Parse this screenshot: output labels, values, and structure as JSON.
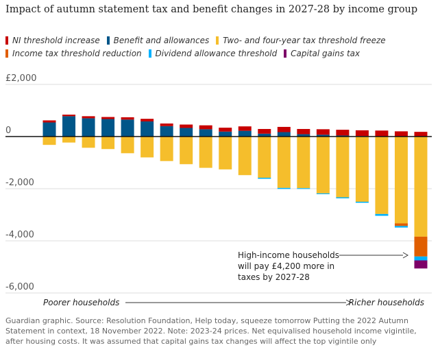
{
  "chart_data": {
    "type": "bar",
    "title": "Impact of autumn statement tax and benefit changes in 2027-28 by income group",
    "ylim": [
      -6000,
      2000
    ],
    "yticks": [
      {
        "value": 2000,
        "label": "£2,000"
      },
      {
        "value": 0,
        "label": "0"
      },
      {
        "value": -2000,
        "label": "-2,000"
      },
      {
        "value": -4000,
        "label": "-4,000"
      },
      {
        "value": -6000,
        "label": "-6,000"
      }
    ],
    "grid": true,
    "legend_position": "top",
    "series": [
      {
        "name": "NI threshold increase",
        "color": "#c70000"
      },
      {
        "name": "Benefit and allowances",
        "color": "#005689"
      },
      {
        "name": "Two- and four-year tax threshold freeze",
        "color": "#f5be2c"
      },
      {
        "name": "Income tax threshold reduction",
        "color": "#e05e00"
      },
      {
        "name": "Dividend allowance threshold",
        "color": "#00b2ff"
      },
      {
        "name": "Capital gains tax",
        "color": "#7d0068"
      }
    ],
    "bars": [
      {
        "ni": 80,
        "benefit": 540,
        "freeze": -320,
        "income": 0,
        "dividend": 0,
        "cgt": 0
      },
      {
        "ni": 60,
        "benefit": 780,
        "freeze": -230,
        "income": 0,
        "dividend": 0,
        "cgt": 0
      },
      {
        "ni": 80,
        "benefit": 700,
        "freeze": -430,
        "income": 0,
        "dividend": 0,
        "cgt": 0
      },
      {
        "ni": 80,
        "benefit": 670,
        "freeze": -480,
        "income": 0,
        "dividend": 0,
        "cgt": 0
      },
      {
        "ni": 90,
        "benefit": 650,
        "freeze": -640,
        "income": 0,
        "dividend": 0,
        "cgt": 0
      },
      {
        "ni": 100,
        "benefit": 580,
        "freeze": -800,
        "income": 0,
        "dividend": 0,
        "cgt": 0
      },
      {
        "ni": 100,
        "benefit": 400,
        "freeze": -940,
        "income": 0,
        "dividend": 0,
        "cgt": 0
      },
      {
        "ni": 130,
        "benefit": 330,
        "freeze": -1060,
        "income": 0,
        "dividend": 0,
        "cgt": 0
      },
      {
        "ni": 150,
        "benefit": 280,
        "freeze": -1200,
        "income": 0,
        "dividend": 0,
        "cgt": 0
      },
      {
        "ni": 150,
        "benefit": 190,
        "freeze": -1260,
        "income": 0,
        "dividend": 0,
        "cgt": 0
      },
      {
        "ni": 170,
        "benefit": 220,
        "freeze": -1480,
        "income": 0,
        "dividend": 0,
        "cgt": 0
      },
      {
        "ni": 180,
        "benefit": 110,
        "freeze": -1580,
        "income": 0,
        "dividend": -40,
        "cgt": 0
      },
      {
        "ni": 200,
        "benefit": 170,
        "freeze": -1970,
        "income": 0,
        "dividend": -40,
        "cgt": 0
      },
      {
        "ni": 200,
        "benefit": 90,
        "freeze": -1980,
        "income": 0,
        "dividend": -30,
        "cgt": 0
      },
      {
        "ni": 210,
        "benefit": 70,
        "freeze": -2180,
        "income": 0,
        "dividend": -30,
        "cgt": 0
      },
      {
        "ni": 220,
        "benefit": 40,
        "freeze": -2330,
        "income": 0,
        "dividend": -40,
        "cgt": 0
      },
      {
        "ni": 220,
        "benefit": 20,
        "freeze": -2500,
        "income": 0,
        "dividend": -40,
        "cgt": 0
      },
      {
        "ni": 220,
        "benefit": 10,
        "freeze": -2970,
        "income": 0,
        "dividend": -70,
        "cgt": 0
      },
      {
        "ni": 200,
        "benefit": 0,
        "freeze": -3330,
        "income": -100,
        "dividend": -60,
        "cgt": 0
      },
      {
        "ni": 180,
        "benefit": 0,
        "freeze": -3840,
        "income": -760,
        "dividend": -150,
        "cgt": -310
      }
    ],
    "annotation": [
      "High-income households",
      "will pay £4,200 more in",
      "taxes by 2027-28"
    ],
    "x_left_label": "Poorer households",
    "x_right_label": "Richer households"
  },
  "footnote": "Guardian graphic. Source: Resolution Foundation, Help today, squeeze tomorrow Putting the 2022 Autumn Statement in context, 18 November 2022. Note: 2023-24 prices. Net equivalised household income vigintile, after housing costs. It was assumed that capital gains tax changes will affect the top vigintile only"
}
